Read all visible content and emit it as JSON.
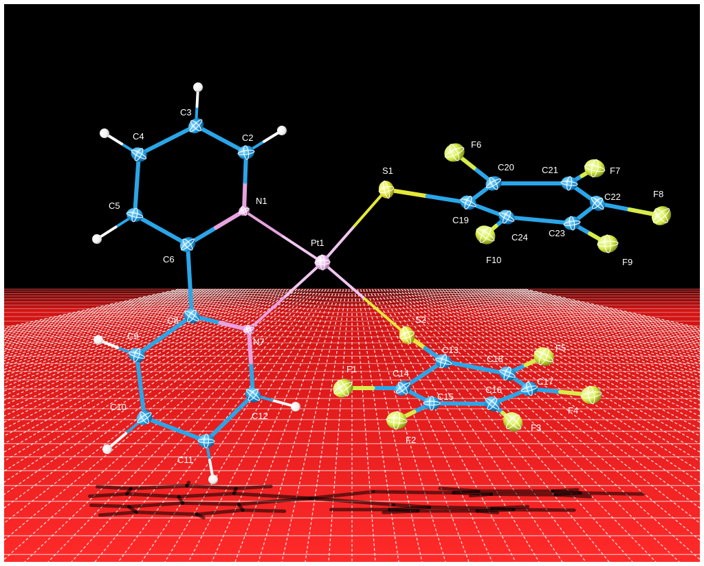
{
  "atoms": [
    {
      "id": "C3",
      "label": "C3",
      "element": "C"
    },
    {
      "id": "C2",
      "label": "C2",
      "element": "C"
    },
    {
      "id": "C4",
      "label": "C4",
      "element": "C"
    },
    {
      "id": "N1",
      "label": "N1",
      "element": "N"
    },
    {
      "id": "C5",
      "label": "C5",
      "element": "C"
    },
    {
      "id": "C6",
      "label": "C6",
      "element": "C"
    },
    {
      "id": "Pt1",
      "label": "Pt1",
      "element": "Pt"
    },
    {
      "id": "C8",
      "label": "C8",
      "element": "C"
    },
    {
      "id": "N7",
      "label": "N7",
      "element": "N"
    },
    {
      "id": "C9",
      "label": "C9",
      "element": "C"
    },
    {
      "id": "C10",
      "label": "C10",
      "element": "C"
    },
    {
      "id": "C11",
      "label": "C11",
      "element": "C"
    },
    {
      "id": "C12",
      "label": "C12",
      "element": "C"
    },
    {
      "id": "S1",
      "label": "S1",
      "element": "S"
    },
    {
      "id": "C19",
      "label": "C19",
      "element": "C"
    },
    {
      "id": "C20",
      "label": "C20",
      "element": "C"
    },
    {
      "id": "C21",
      "label": "C21",
      "element": "C"
    },
    {
      "id": "C22",
      "label": "C22",
      "element": "C"
    },
    {
      "id": "C23",
      "label": "C23",
      "element": "C"
    },
    {
      "id": "C24",
      "label": "C24",
      "element": "C"
    },
    {
      "id": "F6",
      "label": "F6",
      "element": "F"
    },
    {
      "id": "F7",
      "label": "F7",
      "element": "F"
    },
    {
      "id": "F8",
      "label": "F8",
      "element": "F"
    },
    {
      "id": "F9",
      "label": "F9",
      "element": "F"
    },
    {
      "id": "F10",
      "label": "F10",
      "element": "F"
    },
    {
      "id": "S2",
      "label": "S2",
      "element": "S"
    },
    {
      "id": "C13",
      "label": "C13",
      "element": "C"
    },
    {
      "id": "C14",
      "label": "C14",
      "element": "C"
    },
    {
      "id": "C15",
      "label": "C15",
      "element": "C"
    },
    {
      "id": "C16",
      "label": "C16",
      "element": "C"
    },
    {
      "id": "C17",
      "label": "C17",
      "element": "C"
    },
    {
      "id": "C18",
      "label": "C18",
      "element": "C"
    },
    {
      "id": "F1",
      "label": "F1",
      "element": "F"
    },
    {
      "id": "F2",
      "label": "F2",
      "element": "F"
    },
    {
      "id": "F3",
      "label": "F3",
      "element": "F"
    },
    {
      "id": "F4",
      "label": "F4",
      "element": "F"
    },
    {
      "id": "F5",
      "label": "F5",
      "element": "F"
    },
    {
      "id": "H2",
      "label": "",
      "element": "H"
    },
    {
      "id": "H3",
      "label": "",
      "element": "H"
    },
    {
      "id": "H4",
      "label": "",
      "element": "H"
    },
    {
      "id": "H5",
      "label": "",
      "element": "H"
    },
    {
      "id": "H9",
      "label": "",
      "element": "H"
    },
    {
      "id": "H10",
      "label": "",
      "element": "H"
    },
    {
      "id": "H11",
      "label": "",
      "element": "H"
    },
    {
      "id": "H12",
      "label": "",
      "element": "H"
    }
  ],
  "bonds": [
    [
      "C3",
      "C2"
    ],
    [
      "C3",
      "C4"
    ],
    [
      "C4",
      "C5"
    ],
    [
      "C5",
      "C6"
    ],
    [
      "C6",
      "N1"
    ],
    [
      "N1",
      "C2"
    ],
    [
      "N1",
      "Pt1"
    ],
    [
      "C6",
      "C8"
    ],
    [
      "C8",
      "N7"
    ],
    [
      "N7",
      "Pt1"
    ],
    [
      "C8",
      "C9"
    ],
    [
      "C9",
      "C10"
    ],
    [
      "C10",
      "C11"
    ],
    [
      "C11",
      "C12"
    ],
    [
      "C12",
      "N7"
    ],
    [
      "Pt1",
      "S1"
    ],
    [
      "Pt1",
      "S2"
    ],
    [
      "S1",
      "C19"
    ],
    [
      "C19",
      "C20"
    ],
    [
      "C20",
      "C21"
    ],
    [
      "C21",
      "C22"
    ],
    [
      "C22",
      "C23"
    ],
    [
      "C23",
      "C24"
    ],
    [
      "C24",
      "C19"
    ],
    [
      "C20",
      "F6"
    ],
    [
      "C21",
      "F7"
    ],
    [
      "C22",
      "F8"
    ],
    [
      "C23",
      "F9"
    ],
    [
      "C24",
      "F10"
    ],
    [
      "S2",
      "C13"
    ],
    [
      "C13",
      "C14"
    ],
    [
      "C14",
      "C15"
    ],
    [
      "C15",
      "C16"
    ],
    [
      "C16",
      "C17"
    ],
    [
      "C17",
      "C18"
    ],
    [
      "C18",
      "C13"
    ],
    [
      "C14",
      "F1"
    ],
    [
      "C15",
      "F2"
    ],
    [
      "C16",
      "F3"
    ],
    [
      "C17",
      "F4"
    ],
    [
      "C18",
      "F5"
    ],
    [
      "C2",
      "H2"
    ],
    [
      "C3",
      "H3"
    ],
    [
      "C4",
      "H4"
    ],
    [
      "C5",
      "H5"
    ],
    [
      "C9",
      "H9"
    ],
    [
      "C10",
      "H10"
    ],
    [
      "C11",
      "H11"
    ],
    [
      "C12",
      "H12"
    ]
  ],
  "colors": {
    "background_top": "#000000",
    "floor": "#ff1e1e",
    "grid": "#ffffff",
    "carbon": "#2aa6e8",
    "nitrogen": "#e7a2e0",
    "platinum": "#e9b7ea",
    "sulfur": "#e4e83a",
    "fluorine": "#d7ec4a",
    "hydrogen": "#ffffff",
    "label": "#ffffff"
  }
}
